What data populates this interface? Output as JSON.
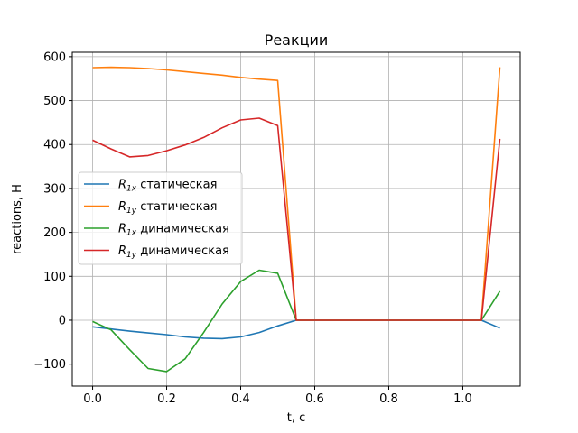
{
  "chart_data": {
    "type": "line",
    "title": "Реакции",
    "xlabel": "t, c",
    "ylabel": "reactions, H",
    "xlim": [
      -0.055,
      1.155
    ],
    "ylim": [
      -150,
      610
    ],
    "xticks": [
      0.0,
      0.2,
      0.4,
      0.6,
      0.8,
      1.0
    ],
    "xtick_labels": [
      "0.0",
      "0.2",
      "0.4",
      "0.6",
      "0.8",
      "1.0"
    ],
    "yticks": [
      -100,
      0,
      100,
      200,
      300,
      400,
      500,
      600
    ],
    "ytick_labels": [
      "−100",
      "0",
      "100",
      "200",
      "300",
      "400",
      "500",
      "600"
    ],
    "grid": true,
    "legend_position": "center-left",
    "x": [
      0.0,
      0.05,
      0.1,
      0.15,
      0.2,
      0.25,
      0.3,
      0.35,
      0.4,
      0.45,
      0.5,
      0.55,
      0.6,
      0.65,
      0.7,
      0.75,
      0.8,
      0.85,
      0.9,
      0.95,
      1.0,
      1.05,
      1.1
    ],
    "series": [
      {
        "name": "R_1x статическая",
        "legend_main": "R",
        "legend_sub": "1x",
        "legend_rest": " статическая",
        "color": "#1f77b4",
        "values": [
          -15,
          -20,
          -25,
          -29,
          -33,
          -38,
          -41,
          -42,
          -38,
          -28,
          -13,
          0,
          0,
          0,
          0,
          0,
          0,
          0,
          0,
          0,
          0,
          0,
          -18
        ]
      },
      {
        "name": "R_1y статическая",
        "legend_main": "R",
        "legend_sub": "1y",
        "legend_rest": " статическая",
        "color": "#ff7f0e",
        "values": [
          575,
          576,
          575,
          573,
          570,
          566,
          562,
          558,
          553,
          549,
          546,
          0,
          0,
          0,
          0,
          0,
          0,
          0,
          0,
          0,
          0,
          0,
          576
        ]
      },
      {
        "name": "R_1x динамическая",
        "legend_main": "R",
        "legend_sub": "1x",
        "legend_rest": " динамическая",
        "color": "#2ca02c",
        "values": [
          -3,
          -22,
          -67,
          -110,
          -117,
          -88,
          -28,
          37,
          88,
          114,
          107,
          0,
          0,
          0,
          0,
          0,
          0,
          0,
          0,
          0,
          0,
          0,
          66
        ]
      },
      {
        "name": "R_1y динамическая",
        "legend_main": "R",
        "legend_sub": "1y",
        "legend_rest": " динамическая",
        "color": "#d62728",
        "values": [
          410,
          390,
          372,
          375,
          386,
          399,
          416,
          438,
          456,
          460,
          443,
          0,
          0,
          0,
          0,
          0,
          0,
          0,
          0,
          0,
          0,
          0,
          413
        ]
      }
    ]
  }
}
